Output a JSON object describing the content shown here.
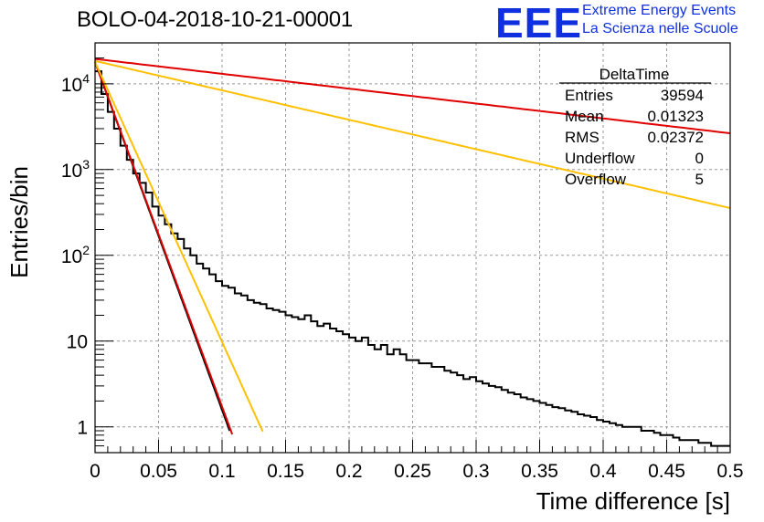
{
  "header": {
    "title": "BOLO-04-2018-10-21-00001",
    "logo_text": "EEE",
    "logo_line1": "Extreme Energy Events",
    "logo_line2": "La Scienza nelle Scuole",
    "logo_color": "#1030e0"
  },
  "stats_box": {
    "name": "DeltaTime",
    "rows": [
      {
        "label": "Entries",
        "value": "39594"
      },
      {
        "label": "Mean",
        "value": "0.01323"
      },
      {
        "label": "RMS",
        "value": "0.02372"
      },
      {
        "label": "Underflow",
        "value": "0"
      },
      {
        "label": "Overflow",
        "value": "5"
      }
    ]
  },
  "chart_data": {
    "type": "line",
    "xlabel": "Time difference [s]",
    "ylabel": "Entries/bin",
    "xlim": [
      0,
      0.5
    ],
    "ylim": [
      0.5,
      30000
    ],
    "y_scale": "log",
    "grid": true,
    "x_ticks": [
      "0",
      "0.05",
      "0.1",
      "0.15",
      "0.2",
      "0.25",
      "0.3",
      "0.35",
      "0.4",
      "0.45",
      "0.5"
    ],
    "y_ticks": [
      {
        "value": 1,
        "base": "1",
        "exp": ""
      },
      {
        "value": 10,
        "base": "10",
        "exp": ""
      },
      {
        "value": 100,
        "base": "10",
        "exp": "2"
      },
      {
        "value": 1000,
        "base": "10",
        "exp": "3"
      },
      {
        "value": 10000,
        "base": "10",
        "exp": "4"
      }
    ],
    "histogram": {
      "bin_width": 0.005,
      "color": "#000000",
      "counts": [
        14000,
        7600,
        4700,
        3000,
        1900,
        1300,
        900,
        700,
        540,
        370,
        290,
        230,
        180,
        155,
        120,
        100,
        80,
        70,
        60,
        50,
        44,
        42,
        36,
        34,
        30,
        28,
        27,
        24,
        23,
        22,
        20,
        19,
        18,
        20,
        17,
        15,
        16,
        14,
        13,
        12,
        11,
        10,
        11,
        9,
        8,
        9,
        7,
        8,
        7,
        6,
        6,
        5.5,
        5.5,
        5,
        5,
        4.5,
        4.3,
        4.0,
        3.6,
        3.8,
        3.4,
        3.2,
        3.0,
        2.9,
        2.7,
        2.5,
        2.4,
        2.2,
        2.1,
        2.0,
        1.9,
        1.8,
        1.7,
        1.65,
        1.55,
        1.5,
        1.4,
        1.35,
        1.3,
        1.2,
        1.15,
        1.1,
        1.05,
        1.0,
        1.0,
        1.0,
        0.9,
        0.9,
        0.85,
        0.8,
        0.8,
        0.75,
        0.7,
        0.7,
        0.7,
        0.65,
        0.65,
        0.6,
        0.6,
        0.6
      ]
    },
    "fits": [
      {
        "color": "#000000",
        "a": 18000,
        "tau": 0.0107,
        "x_range": [
          0.0,
          0.106
        ]
      },
      {
        "color": "#e00000",
        "a": 18000,
        "tau": 0.0108,
        "x_range": [
          0.0,
          0.108
        ]
      },
      {
        "color": "#ffc000",
        "a": 18000,
        "tau": 0.0133,
        "x_range": [
          0.0,
          0.132
        ]
      },
      {
        "color": "#ffc000",
        "a": 18500,
        "tau": 0.1265,
        "x_range": [
          0.0,
          0.5
        ]
      },
      {
        "color": "#e00000",
        "a": 19500,
        "tau": 0.2505,
        "x_range": [
          0.0,
          0.5
        ]
      }
    ]
  }
}
